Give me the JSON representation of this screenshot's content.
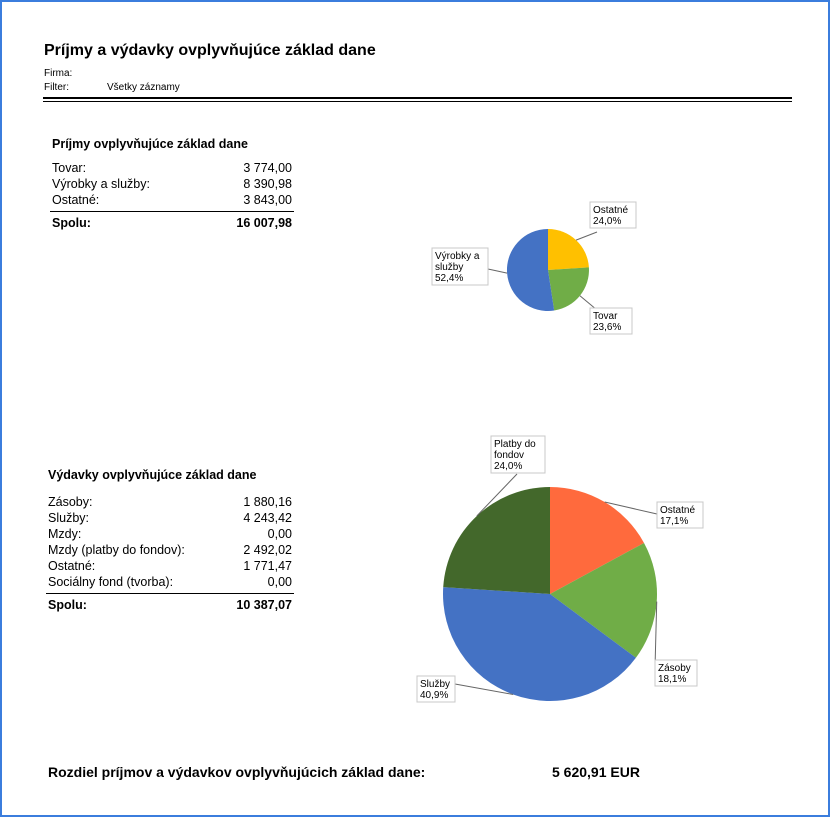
{
  "report": {
    "title": "Príjmy a výdavky ovplyvňujúce základ dane",
    "firma_label": "Firma:",
    "firma_value": "",
    "filter_label": "Filter:",
    "filter_value": "Všetky záznamy"
  },
  "income": {
    "title": "Príjmy ovplyvňujúce základ dane",
    "rows": [
      {
        "label": "Tovar:",
        "value": "3 774,00"
      },
      {
        "label": "Výrobky a služby:",
        "value": "8 390,98"
      },
      {
        "label": "Ostatné:",
        "value": "3 843,00"
      }
    ],
    "total_label": "Spolu:",
    "total_value": "16 007,98"
  },
  "expenses": {
    "title": "Výdavky ovplyvňujúce základ dane",
    "rows": [
      {
        "label": "Zásoby:",
        "value": "1 880,16"
      },
      {
        "label": "Služby:",
        "value": "4 243,42"
      },
      {
        "label": "Mzdy:",
        "value": "0,00"
      },
      {
        "label": "Mzdy (platby do fondov):",
        "value": "2 492,02"
      },
      {
        "label": "Ostatné:",
        "value": "1 771,47"
      },
      {
        "label": "Sociálny fond (tvorba):",
        "value": "0,00"
      }
    ],
    "total_label": "Spolu:",
    "total_value": "10 387,07"
  },
  "difference": {
    "label": "Rozdiel príjmov a výdavkov ovplyvňujúcich základ dane:",
    "value": "5 620,91 EUR"
  },
  "chart_data": [
    {
      "type": "pie",
      "title": "",
      "slices": [
        {
          "name_lines": [
            "Ostatné"
          ],
          "pct_label": "24,0%",
          "value": 24.0,
          "color": "#ffc000"
        },
        {
          "name_lines": [
            "Tovar"
          ],
          "pct_label": "23,6%",
          "value": 23.6,
          "color": "#70ad47"
        },
        {
          "name_lines": [
            "Výrobky a",
            "služby"
          ],
          "pct_label": "52,4%",
          "value": 52.4,
          "color": "#4472c4"
        }
      ]
    },
    {
      "type": "pie",
      "title": "",
      "slices": [
        {
          "name_lines": [
            "Ostatné"
          ],
          "pct_label": "17,1%",
          "value": 17.1,
          "color": "#ff6a3d"
        },
        {
          "name_lines": [
            "Zásoby"
          ],
          "pct_label": "18,1%",
          "value": 18.1,
          "color": "#70ad47"
        },
        {
          "name_lines": [
            "Služby"
          ],
          "pct_label": "40,9%",
          "value": 40.9,
          "color": "#4472c4"
        },
        {
          "name_lines": [
            "Platby do",
            "fondov"
          ],
          "pct_label": "24,0%",
          "value": 24.0,
          "color": "#43682b"
        }
      ]
    }
  ]
}
